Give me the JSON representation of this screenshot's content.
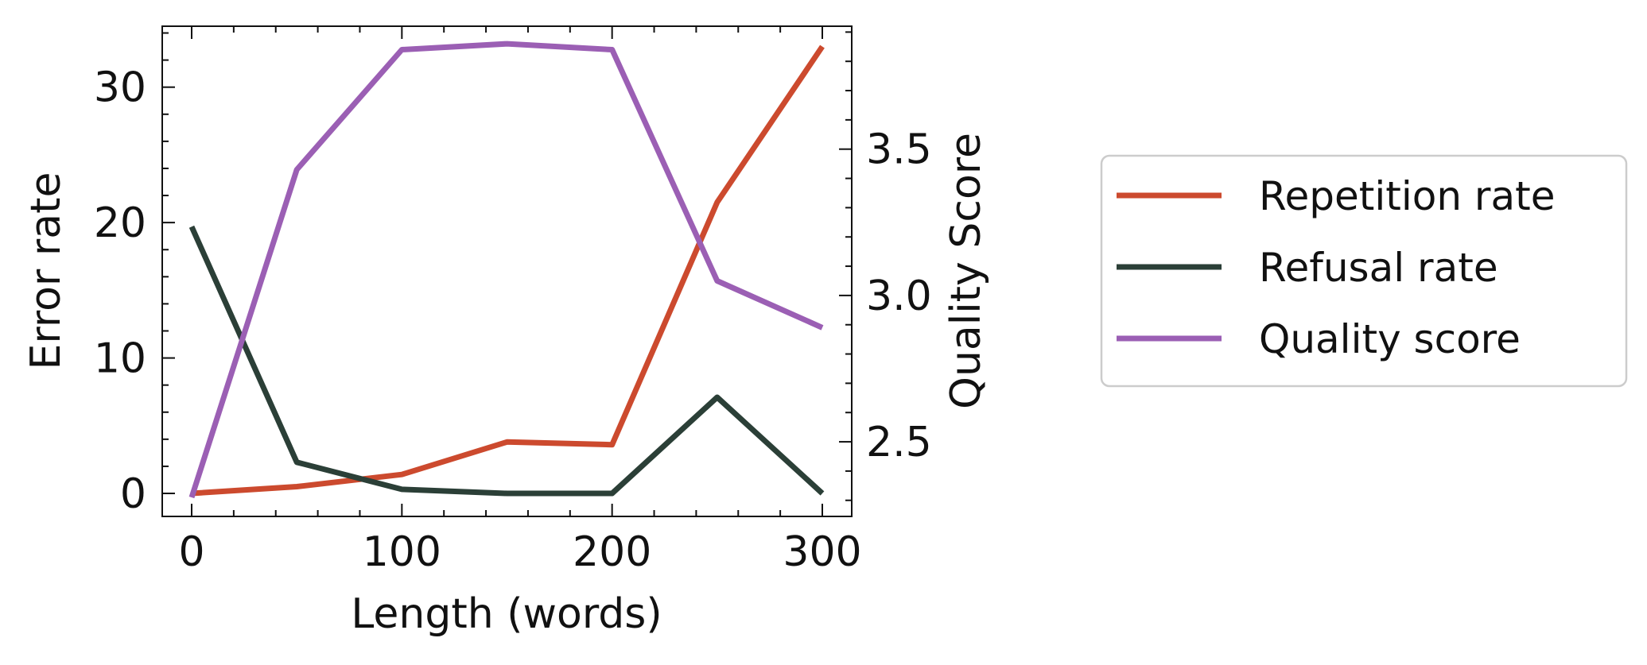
{
  "chart_data": {
    "type": "line",
    "xlabel": "Length (words)",
    "ylabel_left": "Error rate",
    "ylabel_right": "Quality Score",
    "xlim": [
      -14,
      314
    ],
    "ylim_left": [
      -1.7,
      34.5
    ],
    "ylim_right": [
      2.245,
      3.92
    ],
    "x": [
      0,
      50,
      100,
      150,
      200,
      250,
      300
    ],
    "x_ticks": [
      0,
      100,
      200,
      300
    ],
    "y_left_ticks": [
      0,
      10,
      20,
      30
    ],
    "y_right_ticks": [
      2.5,
      3.0,
      3.5
    ],
    "y_right_tick_labels": [
      "2.5",
      "3.0",
      "3.5"
    ],
    "series": [
      {
        "name": "Repetition rate",
        "axis": "left",
        "color": "#cc4a2e",
        "values": [
          0,
          0.5,
          1.4,
          3.8,
          3.6,
          21.5,
          33.0
        ]
      },
      {
        "name": "Refusal rate",
        "axis": "left",
        "color": "#2b3f37",
        "values": [
          19.7,
          2.3,
          0.3,
          0.0,
          0.0,
          7.1,
          0.0
        ]
      },
      {
        "name": "Quality score",
        "axis": "right",
        "color": "#9b5fb4",
        "values": [
          2.31,
          3.43,
          3.84,
          3.86,
          3.84,
          3.05,
          2.89
        ]
      }
    ],
    "legend": "right",
    "grid": false
  }
}
